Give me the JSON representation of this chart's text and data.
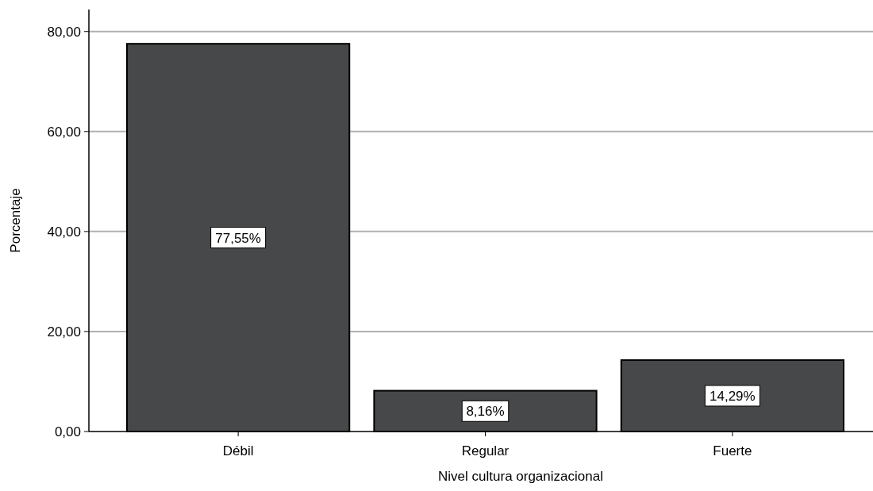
{
  "chart_data": {
    "type": "bar",
    "xlabel": "Nivel cultura organizacional",
    "ylabel": "Porcentaje",
    "categories": [
      "Débil",
      "Regular",
      "Fuerte"
    ],
    "values": [
      77.55,
      8.16,
      14.29
    ],
    "value_labels": [
      "77,55%",
      "8,16%",
      "14,29%"
    ],
    "color": "#47484a",
    "ylim": [
      0,
      84.4
    ],
    "yticks": [
      {
        "value": 0,
        "label": "0,00"
      },
      {
        "value": 20,
        "label": "20,00"
      },
      {
        "value": 40,
        "label": "40,00"
      },
      {
        "value": 60,
        "label": "60,00"
      },
      {
        "value": 80,
        "label": "80,00"
      }
    ],
    "grid": "y"
  }
}
